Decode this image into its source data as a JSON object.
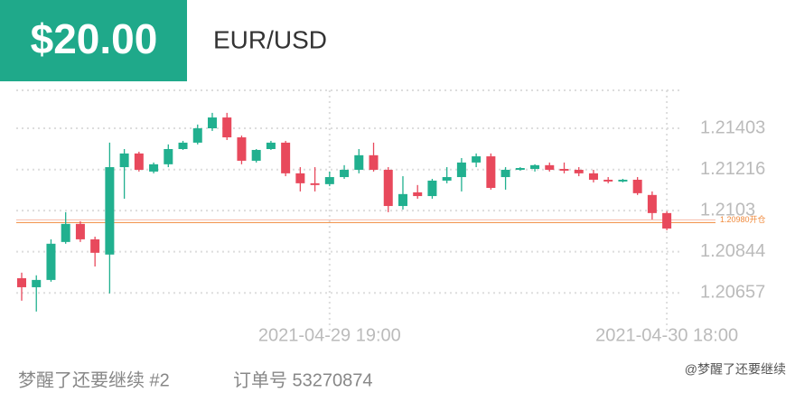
{
  "badge": "$20.00",
  "footer": {
    "user": "梦醒了还要继续 #2",
    "order": "订单号 53270874",
    "watermark": "@梦醒了还要继续"
  },
  "chart_data": {
    "type": "candlestick",
    "title": "EUR/USD",
    "categories": [
      null,
      null,
      null,
      null,
      null,
      null,
      null,
      null,
      null,
      null,
      null,
      null,
      null,
      null,
      null,
      null,
      null,
      null,
      null,
      null,
      null,
      "2021-04-29 19:00",
      null,
      null,
      null,
      null,
      null,
      null,
      null,
      null,
      null,
      null,
      null,
      null,
      null,
      null,
      null,
      null,
      null,
      null,
      null,
      null,
      null,
      null,
      "2021-04-30 18:00"
    ],
    "open": [
      1.20724,
      1.20683,
      1.20716,
      1.20888,
      1.2097,
      1.209,
      1.20831,
      1.21227,
      1.21289,
      1.21207,
      1.2124,
      1.21309,
      1.21338,
      1.21403,
      1.21452,
      1.21362,
      1.21256,
      1.21309,
      1.21338,
      1.21199,
      1.21154,
      1.2115,
      1.21182,
      1.21215,
      1.21281,
      1.21215,
      1.21051,
      1.21113,
      1.21096,
      1.21166,
      1.21182,
      1.21248,
      1.21276,
      1.21182,
      1.21215,
      1.21219,
      1.21236,
      1.21219,
      1.21215,
      1.21199,
      1.2117,
      1.21162,
      1.2117,
      1.21101,
      1.21019
    ],
    "high": [
      1.20749,
      1.20737,
      1.209,
      1.21023,
      1.20982,
      1.20912,
      1.21338,
      1.21309,
      1.21297,
      1.21248,
      1.2133,
      1.21346,
      1.2142,
      1.21473,
      1.21473,
      1.2137,
      1.21309,
      1.21346,
      1.21346,
      1.21227,
      1.21227,
      1.21207,
      1.21236,
      1.21309,
      1.21338,
      1.21227,
      1.21186,
      1.21146,
      1.21174,
      1.21227,
      1.21268,
      1.21289,
      1.21289,
      1.21227,
      1.21227,
      1.2124,
      1.21248,
      1.21248,
      1.21227,
      1.21215,
      1.21182,
      1.21174,
      1.21182,
      1.21117,
      1.21027
    ],
    "low": [
      1.20622,
      1.20573,
      1.20708,
      1.2088,
      1.20888,
      1.20777,
      1.20655,
      1.21084,
      1.21207,
      1.21199,
      1.21227,
      1.21305,
      1.2133,
      1.21391,
      1.2135,
      1.2124,
      1.21248,
      1.21305,
      1.21186,
      1.21117,
      1.21117,
      1.21141,
      1.21174,
      1.21199,
      1.21207,
      1.21023,
      1.21035,
      1.21084,
      1.21084,
      1.21154,
      1.21117,
      1.21227,
      1.21125,
      1.21125,
      1.21211,
      1.21207,
      1.21207,
      1.21199,
      1.21186,
      1.21158,
      1.21154,
      1.21158,
      1.21101,
      1.2099,
      1.20941
    ],
    "close": [
      1.20683,
      1.20716,
      1.2088,
      1.2097,
      1.209,
      1.20839,
      1.21227,
      1.21289,
      1.21215,
      1.2124,
      1.21309,
      1.21338,
      1.21403,
      1.21452,
      1.21362,
      1.21256,
      1.21305,
      1.21338,
      1.21199,
      1.21154,
      1.21146,
      1.21182,
      1.21215,
      1.21281,
      1.21215,
      1.21051,
      1.21105,
      1.21096,
      1.21166,
      1.21182,
      1.21248,
      1.21276,
      1.21133,
      1.21215,
      1.21223,
      1.21236,
      1.21215,
      1.21211,
      1.21199,
      1.2117,
      1.21162,
      1.2117,
      1.21109,
      1.21019,
      1.20949
    ],
    "up_color": "#21b08f",
    "down_color": "#e8495c",
    "ylim": [
      1.2047,
      1.21575
    ],
    "yticks": [
      1.20657,
      1.20844,
      1.2103,
      1.21216,
      1.21403
    ],
    "grid": true,
    "annotations": [
      {
        "value": 1.2098,
        "label": "1.20980开仓",
        "color": "#f08a3c"
      }
    ]
  }
}
